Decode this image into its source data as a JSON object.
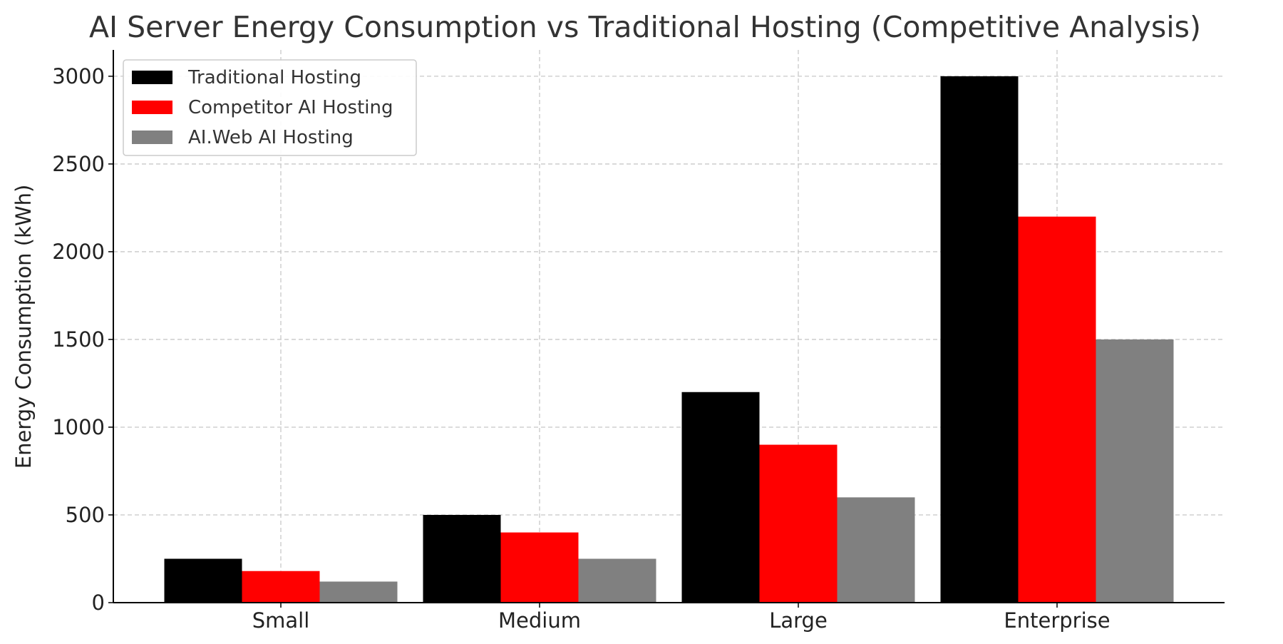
{
  "chart_data": {
    "type": "bar",
    "title": "AI Server Energy Consumption vs Traditional Hosting (Competitive Analysis)",
    "xlabel": "",
    "ylabel": "Energy Consumption (kWh)",
    "categories": [
      "Small",
      "Medium",
      "Large",
      "Enterprise"
    ],
    "series": [
      {
        "name": "Traditional Hosting",
        "color": "#000000",
        "values": [
          250,
          500,
          1200,
          3000
        ]
      },
      {
        "name": "Competitor AI Hosting",
        "color": "#ff0000",
        "values": [
          180,
          400,
          900,
          2200
        ]
      },
      {
        "name": "AI.Web AI Hosting",
        "color": "#808080",
        "values": [
          120,
          250,
          600,
          1500
        ]
      }
    ],
    "ylim": [
      0,
      3150
    ],
    "yticks": [
      0,
      500,
      1000,
      1500,
      2000,
      2500,
      3000
    ],
    "grid": true,
    "legend_position": "top-left"
  }
}
